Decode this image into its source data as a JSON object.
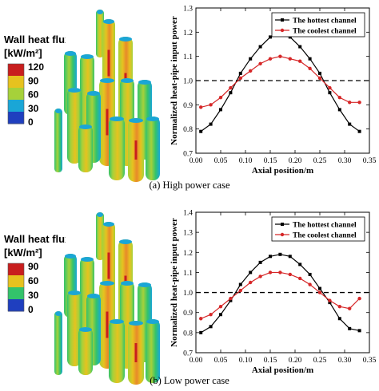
{
  "colors": {
    "hottest": "#000000",
    "coolest": "#d62728",
    "reference": "#000000",
    "contour_scale": [
      "#1f3fbf",
      "#1aa6d6",
      "#33c36b",
      "#a6d13a",
      "#e6c21f",
      "#e8892a",
      "#c81e1e"
    ]
  },
  "panels": [
    {
      "caption": "(a) High power case",
      "colorbar": {
        "title": "Wall heat flux",
        "unit": "[kW/m²]",
        "ticks": [
          "120",
          "90",
          "60",
          "30",
          "0"
        ]
      },
      "chart_data": {
        "type": "line",
        "xlabel": "Axial position/m",
        "ylabel": "Normalized heat-pipe input power",
        "xlim": [
          0.0,
          0.35
        ],
        "ylim": [
          0.7,
          1.3
        ],
        "xticks": [
          "0.00",
          "0.05",
          "0.10",
          "0.15",
          "0.20",
          "0.25",
          "0.30",
          "0.35"
        ],
        "yticks": [
          "0.7",
          "0.8",
          "0.9",
          "1.0",
          "1.1",
          "1.2",
          "1.3"
        ],
        "reference_line": 1.0,
        "legend_position": "top-right",
        "series": [
          {
            "name": "The hottest channel",
            "marker": "square",
            "x": [
              0.01,
              0.03,
              0.05,
              0.07,
              0.09,
              0.11,
              0.13,
              0.15,
              0.17,
              0.19,
              0.21,
              0.23,
              0.25,
              0.27,
              0.29,
              0.31,
              0.33
            ],
            "y": [
              0.79,
              0.82,
              0.88,
              0.95,
              1.03,
              1.09,
              1.14,
              1.18,
              1.19,
              1.18,
              1.14,
              1.09,
              1.03,
              0.95,
              0.88,
              0.82,
              0.79
            ]
          },
          {
            "name": "The coolest channel",
            "marker": "circle",
            "x": [
              0.01,
              0.03,
              0.05,
              0.07,
              0.09,
              0.11,
              0.13,
              0.15,
              0.17,
              0.19,
              0.21,
              0.23,
              0.25,
              0.27,
              0.29,
              0.31,
              0.33
            ],
            "y": [
              0.89,
              0.9,
              0.93,
              0.97,
              1.01,
              1.04,
              1.07,
              1.09,
              1.1,
              1.09,
              1.08,
              1.05,
              1.01,
              0.97,
              0.93,
              0.91,
              0.91
            ]
          }
        ]
      }
    },
    {
      "caption": "(b) Low power case",
      "colorbar": {
        "title": "Wall heat flux",
        "unit": "[kW/m²]",
        "ticks": [
          "90",
          "60",
          "30",
          "0"
        ]
      },
      "chart_data": {
        "type": "line",
        "xlabel": "Axial position/m",
        "ylabel": "Normalized heat-pipe input power",
        "xlim": [
          0.0,
          0.35
        ],
        "ylim": [
          0.7,
          1.4
        ],
        "xticks": [
          "0.00",
          "0.05",
          "0.10",
          "0.15",
          "0.20",
          "0.25",
          "0.30",
          "0.35"
        ],
        "yticks": [
          "0.7",
          "0.8",
          "0.9",
          "1.0",
          "1.1",
          "1.2",
          "1.3",
          "1.4"
        ],
        "reference_line": 1.0,
        "legend_position": "top-right",
        "series": [
          {
            "name": "The hottest channel",
            "marker": "square",
            "x": [
              0.01,
              0.03,
              0.05,
              0.07,
              0.09,
              0.11,
              0.13,
              0.15,
              0.17,
              0.19,
              0.21,
              0.23,
              0.25,
              0.27,
              0.29,
              0.31,
              0.33
            ],
            "y": [
              0.8,
              0.83,
              0.89,
              0.96,
              1.04,
              1.1,
              1.15,
              1.18,
              1.19,
              1.18,
              1.14,
              1.09,
              1.02,
              0.95,
              0.87,
              0.82,
              0.81
            ]
          },
          {
            "name": "The coolest channel",
            "marker": "circle",
            "x": [
              0.01,
              0.03,
              0.05,
              0.07,
              0.09,
              0.11,
              0.13,
              0.15,
              0.17,
              0.19,
              0.21,
              0.23,
              0.25,
              0.27,
              0.29,
              0.31,
              0.33
            ],
            "y": [
              0.87,
              0.89,
              0.93,
              0.97,
              1.01,
              1.05,
              1.08,
              1.1,
              1.1,
              1.09,
              1.07,
              1.04,
              1.0,
              0.96,
              0.93,
              0.92,
              0.97
            ]
          }
        ]
      }
    }
  ]
}
